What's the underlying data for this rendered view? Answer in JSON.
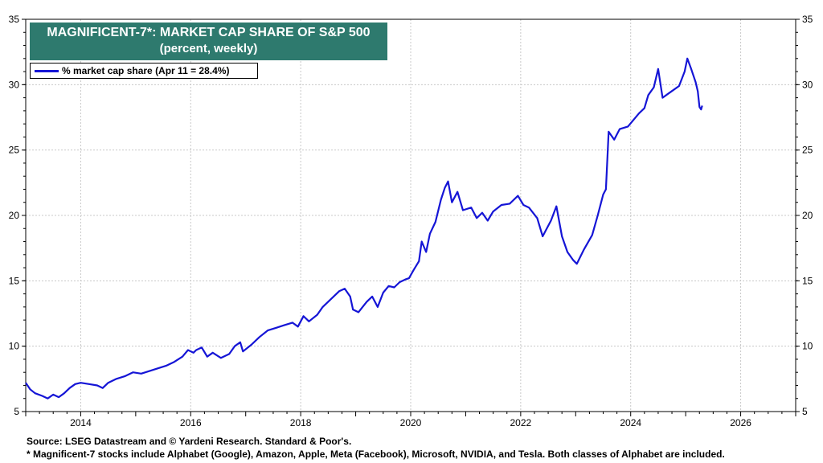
{
  "chart_data": {
    "type": "line",
    "title": "MAGNIFICENT-7*: MARKET CAP SHARE OF S&P 500",
    "subtitle": "(percent, weekly)",
    "legend": [
      {
        "label": "% market cap share (Apr 11 = 28.4%)",
        "color": "#1515d6"
      }
    ],
    "legend_position": "top-left",
    "xlim": [
      2013.0,
      2027.0
    ],
    "ylim": [
      5,
      35
    ],
    "x_ticks": [
      2014,
      2016,
      2018,
      2020,
      2022,
      2024,
      2026
    ],
    "x_tick_labels": [
      "2014",
      "2016",
      "2018",
      "2020",
      "2022",
      "2024",
      "2026"
    ],
    "y_ticks": [
      5,
      10,
      15,
      20,
      25,
      30,
      35
    ],
    "y_tick_labels": [
      "5",
      "10",
      "15",
      "20",
      "25",
      "30",
      "35"
    ],
    "y_axis_both_sides": true,
    "grid": true,
    "series": [
      {
        "name": "% market cap share (Apr 11 = 28.4%)",
        "color": "#1515d6",
        "points": [
          [
            2013.0,
            7.2
          ],
          [
            2013.08,
            6.7
          ],
          [
            2013.17,
            6.4
          ],
          [
            2013.3,
            6.2
          ],
          [
            2013.4,
            6.0
          ],
          [
            2013.5,
            6.3
          ],
          [
            2013.6,
            6.1
          ],
          [
            2013.7,
            6.4
          ],
          [
            2013.8,
            6.8
          ],
          [
            2013.9,
            7.1
          ],
          [
            2014.0,
            7.2
          ],
          [
            2014.15,
            7.1
          ],
          [
            2014.3,
            7.0
          ],
          [
            2014.4,
            6.8
          ],
          [
            2014.5,
            7.2
          ],
          [
            2014.65,
            7.5
          ],
          [
            2014.8,
            7.7
          ],
          [
            2014.95,
            8.0
          ],
          [
            2015.1,
            7.9
          ],
          [
            2015.25,
            8.1
          ],
          [
            2015.4,
            8.3
          ],
          [
            2015.55,
            8.5
          ],
          [
            2015.7,
            8.8
          ],
          [
            2015.85,
            9.2
          ],
          [
            2015.95,
            9.7
          ],
          [
            2016.05,
            9.5
          ],
          [
            2016.1,
            9.7
          ],
          [
            2016.2,
            9.9
          ],
          [
            2016.3,
            9.2
          ],
          [
            2016.4,
            9.5
          ],
          [
            2016.55,
            9.1
          ],
          [
            2016.7,
            9.4
          ],
          [
            2016.8,
            10.0
          ],
          [
            2016.9,
            10.3
          ],
          [
            2016.95,
            9.6
          ],
          [
            2017.1,
            10.1
          ],
          [
            2017.25,
            10.7
          ],
          [
            2017.4,
            11.2
          ],
          [
            2017.55,
            11.4
          ],
          [
            2017.7,
            11.6
          ],
          [
            2017.85,
            11.8
          ],
          [
            2017.95,
            11.5
          ],
          [
            2018.05,
            12.3
          ],
          [
            2018.15,
            11.9
          ],
          [
            2018.3,
            12.4
          ],
          [
            2018.4,
            13.0
          ],
          [
            2018.55,
            13.6
          ],
          [
            2018.7,
            14.2
          ],
          [
            2018.8,
            14.4
          ],
          [
            2018.9,
            13.8
          ],
          [
            2018.95,
            12.8
          ],
          [
            2019.05,
            12.6
          ],
          [
            2019.2,
            13.4
          ],
          [
            2019.3,
            13.8
          ],
          [
            2019.4,
            13.0
          ],
          [
            2019.5,
            14.1
          ],
          [
            2019.6,
            14.6
          ],
          [
            2019.7,
            14.5
          ],
          [
            2019.8,
            14.9
          ],
          [
            2019.9,
            15.1
          ],
          [
            2019.97,
            15.2
          ],
          [
            2020.05,
            15.8
          ],
          [
            2020.15,
            16.5
          ],
          [
            2020.2,
            18.0
          ],
          [
            2020.28,
            17.2
          ],
          [
            2020.35,
            18.6
          ],
          [
            2020.45,
            19.5
          ],
          [
            2020.55,
            21.2
          ],
          [
            2020.62,
            22.1
          ],
          [
            2020.68,
            22.6
          ],
          [
            2020.75,
            21.0
          ],
          [
            2020.85,
            21.8
          ],
          [
            2020.95,
            20.4
          ],
          [
            2021.1,
            20.6
          ],
          [
            2021.2,
            19.8
          ],
          [
            2021.3,
            20.2
          ],
          [
            2021.4,
            19.6
          ],
          [
            2021.5,
            20.3
          ],
          [
            2021.65,
            20.8
          ],
          [
            2021.8,
            20.9
          ],
          [
            2021.95,
            21.5
          ],
          [
            2022.05,
            20.8
          ],
          [
            2022.15,
            20.6
          ],
          [
            2022.3,
            19.8
          ],
          [
            2022.4,
            18.4
          ],
          [
            2022.55,
            19.6
          ],
          [
            2022.65,
            20.7
          ],
          [
            2022.75,
            18.4
          ],
          [
            2022.85,
            17.2
          ],
          [
            2022.95,
            16.6
          ],
          [
            2023.02,
            16.3
          ],
          [
            2023.15,
            17.4
          ],
          [
            2023.3,
            18.5
          ],
          [
            2023.4,
            20.0
          ],
          [
            2023.5,
            21.6
          ],
          [
            2023.55,
            22.0
          ],
          [
            2023.6,
            26.4
          ],
          [
            2023.7,
            25.8
          ],
          [
            2023.8,
            26.6
          ],
          [
            2023.95,
            26.8
          ],
          [
            2024.05,
            27.3
          ],
          [
            2024.15,
            27.8
          ],
          [
            2024.25,
            28.2
          ],
          [
            2024.32,
            29.2
          ],
          [
            2024.42,
            29.8
          ],
          [
            2024.5,
            31.2
          ],
          [
            2024.58,
            29.0
          ],
          [
            2024.68,
            29.3
          ],
          [
            2024.78,
            29.6
          ],
          [
            2024.88,
            29.9
          ],
          [
            2024.98,
            31.0
          ],
          [
            2025.03,
            32.0
          ],
          [
            2025.1,
            31.2
          ],
          [
            2025.18,
            30.2
          ],
          [
            2025.22,
            29.5
          ],
          [
            2025.25,
            28.3
          ],
          [
            2025.28,
            28.1
          ],
          [
            2025.3,
            28.4
          ]
        ]
      }
    ]
  },
  "footer": {
    "source": "Source: LSEG Datastream and © Yardeni Research. Standard & Poor's.",
    "note": "* Magnificent-7 stocks include Alphabet (Google), Amazon, Apple, Meta (Facebook), Microsoft, NVIDIA, and Tesla. Both classes of Alphabet are included."
  }
}
